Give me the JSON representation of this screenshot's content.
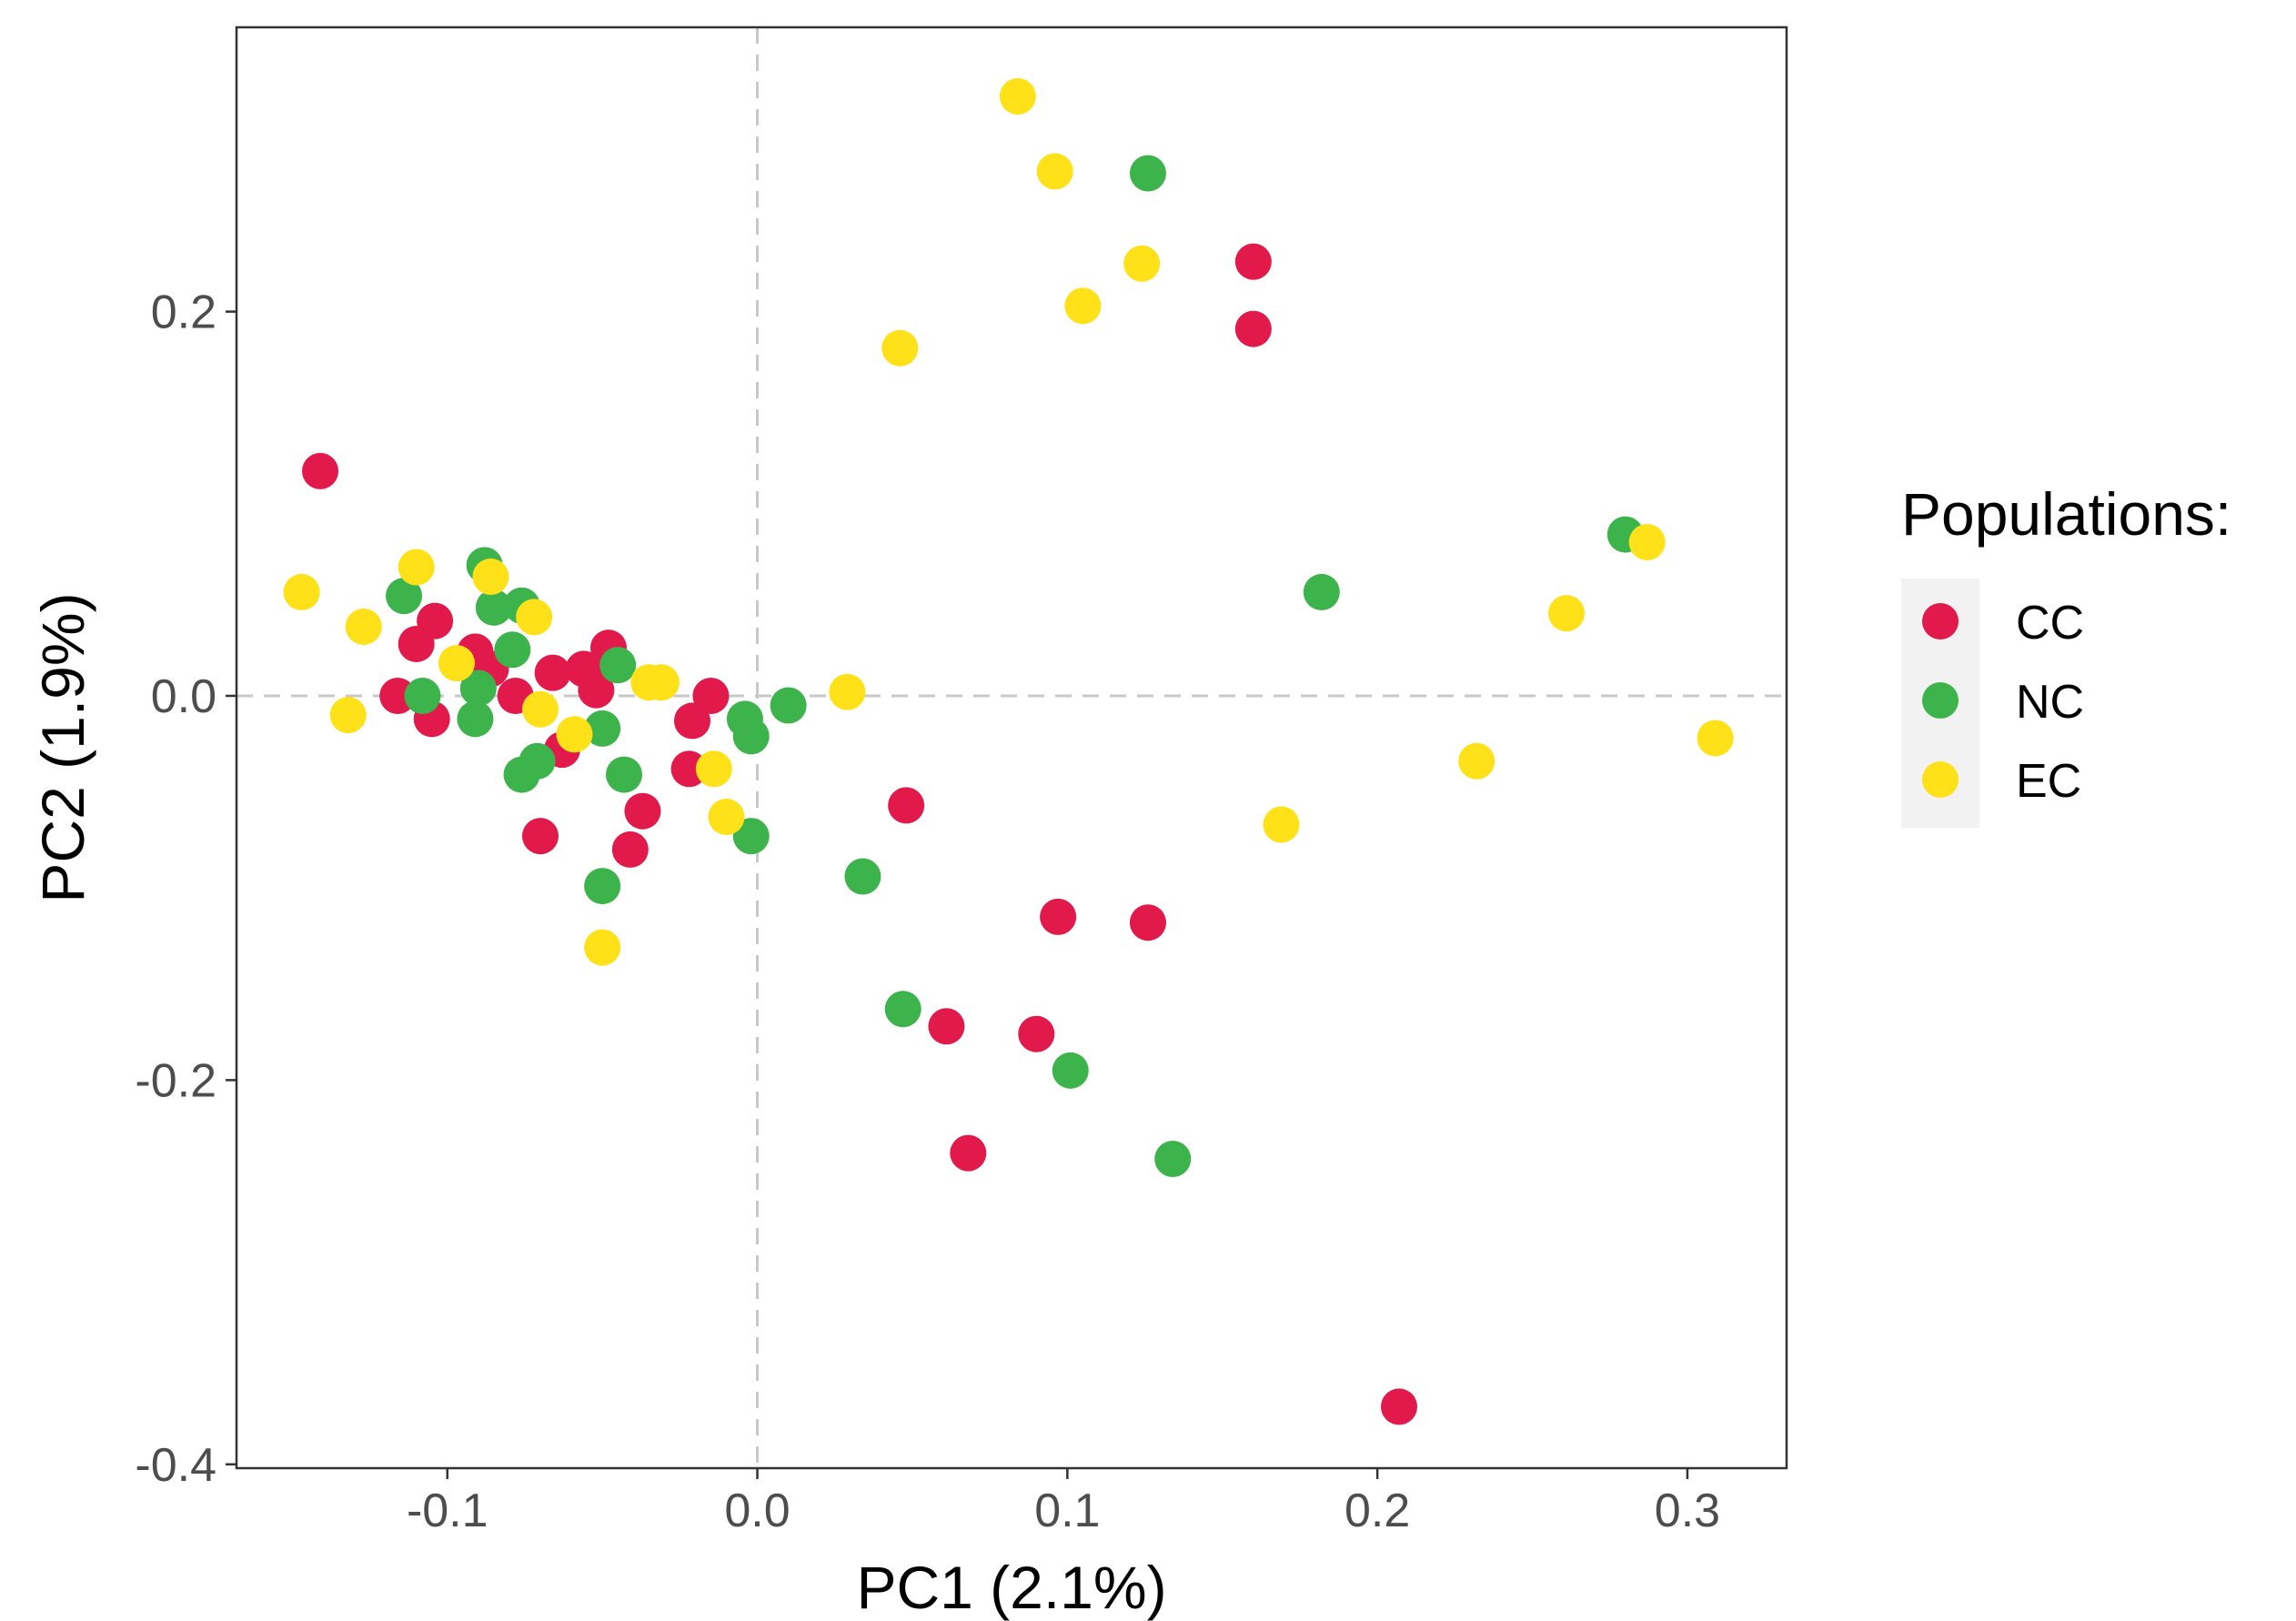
{
  "chart_data": {
    "type": "scatter",
    "title": "",
    "xlabel": "PC1 (2.1%)",
    "ylabel": "PC2 (1.9%)",
    "xlim": [
      -0.168,
      0.332
    ],
    "ylim": [
      -0.402,
      0.348
    ],
    "xticks": [
      -0.1,
      0.0,
      0.1,
      0.2,
      0.3
    ],
    "xtick_labels": [
      "-0.1",
      "0.0",
      "0.1",
      "0.2",
      "0.3"
    ],
    "yticks": [
      -0.4,
      -0.2,
      0.0,
      0.2
    ],
    "ytick_labels": [
      "-0.4",
      "-0.2",
      "0.0",
      "0.2"
    ],
    "reference_lines": {
      "x": 0.0,
      "y": 0.0
    },
    "grid": false,
    "legend": {
      "title": "Populations:",
      "position": "right"
    },
    "series": [
      {
        "name": "CC",
        "color": "#E2194B",
        "x": [
          -0.141,
          -0.11,
          -0.104,
          -0.091,
          -0.086,
          -0.116,
          -0.105,
          -0.078,
          -0.066,
          -0.056,
          -0.052,
          -0.048,
          -0.063,
          -0.07,
          -0.037,
          -0.041,
          -0.021,
          -0.022,
          -0.015,
          0.048,
          0.061,
          0.068,
          0.09,
          0.097,
          0.126,
          0.16,
          0.16,
          0.207
        ],
        "y": [
          0.117,
          0.027,
          0.039,
          0.023,
          0.014,
          0.0,
          -0.012,
          0.0,
          0.012,
          0.014,
          0.003,
          0.025,
          -0.028,
          -0.073,
          -0.06,
          -0.08,
          -0.013,
          -0.038,
          0.0,
          -0.057,
          -0.172,
          -0.238,
          -0.176,
          -0.115,
          -0.118,
          0.226,
          0.191,
          -0.37
        ]
      },
      {
        "name": "NC",
        "color": "#3CB44B",
        "x": [
          -0.114,
          -0.108,
          -0.088,
          -0.085,
          -0.076,
          -0.079,
          -0.09,
          -0.091,
          -0.071,
          -0.076,
          -0.05,
          -0.043,
          -0.05,
          -0.045,
          -0.004,
          -0.002,
          -0.002,
          0.01,
          0.034,
          0.047,
          0.101,
          0.126,
          0.134,
          0.182,
          0.28
        ],
        "y": [
          0.052,
          0.0,
          0.068,
          0.046,
          0.047,
          0.024,
          0.004,
          -0.012,
          -0.034,
          -0.041,
          -0.017,
          -0.041,
          -0.099,
          0.016,
          -0.012,
          -0.021,
          -0.073,
          -0.005,
          -0.094,
          -0.163,
          -0.195,
          0.272,
          -0.241,
          0.054,
          0.084
        ]
      },
      {
        "name": "EC",
        "color": "#FFE119",
        "x": [
          -0.147,
          -0.127,
          -0.132,
          -0.11,
          -0.097,
          -0.086,
          -0.072,
          -0.07,
          -0.059,
          -0.05,
          -0.035,
          -0.031,
          -0.014,
          -0.01,
          0.029,
          0.046,
          0.084,
          0.096,
          0.105,
          0.124,
          0.169,
          0.232,
          0.261,
          0.287,
          0.309
        ],
        "y": [
          0.054,
          0.036,
          -0.01,
          0.067,
          0.017,
          0.062,
          0.041,
          -0.007,
          -0.02,
          -0.131,
          0.007,
          0.007,
          -0.038,
          -0.063,
          0.002,
          0.181,
          0.312,
          0.273,
          0.203,
          0.225,
          -0.067,
          -0.034,
          0.043,
          0.08,
          -0.022
        ]
      }
    ]
  }
}
